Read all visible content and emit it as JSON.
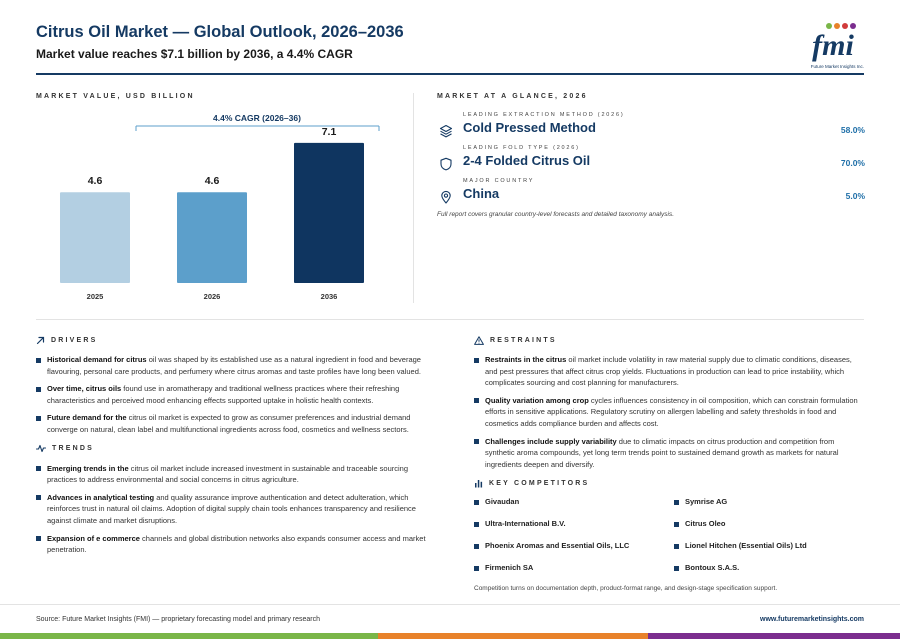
{
  "header": {
    "title": "Citrus Oil Market — Global Outlook, 2026–2036",
    "subtitle": "Market value reaches $7.1 billion by 2036, a 4.4% CAGR",
    "logo_text": "fmi",
    "logo_tagline": "Future Market Insights Inc."
  },
  "chart_section": {
    "label": "MARKET VALUE, USD BILLION"
  },
  "chart_data": {
    "type": "bar",
    "categories": [
      "2025",
      "2026",
      "2036"
    ],
    "values": [
      4.6,
      4.6,
      7.1
    ],
    "value_labels": [
      "4.6",
      "4.6",
      "7.1"
    ],
    "annotation": "4.4% CAGR (2026–36)",
    "ylim": [
      0,
      7.6
    ],
    "colors": [
      "#b3cfe2",
      "#5c9fcb",
      "#0f3560"
    ],
    "grid": false
  },
  "glance": {
    "label": "MARKET AT A GLANCE, 2026",
    "items": [
      {
        "sub": "LEADING EXTRACTION METHOD (2026)",
        "name": "Cold Pressed Method",
        "value": "58.0%",
        "icon": "layers-icon"
      },
      {
        "sub": "LEADING FOLD TYPE (2026)",
        "name": "2-4 Folded Citrus Oil",
        "value": "70.0%",
        "icon": "shield-icon"
      },
      {
        "sub": "MAJOR COUNTRY",
        "name": "China",
        "value": "5.0%",
        "icon": "location-pin-icon"
      }
    ],
    "note": "Full report covers granular country-level forecasts and detailed taxonomy analysis."
  },
  "drivers": {
    "label": "DRIVERS",
    "items": [
      {
        "lead": "Historical demand for citrus",
        "text": " oil was shaped by its established use as a natural ingredient in food and beverage flavouring, personal care products, and perfumery where citrus aromas and taste profiles have long been valued."
      },
      {
        "lead": "Over time, citrus oils",
        "text": " found use in aromatherapy and traditional wellness practices where their refreshing characteristics and perceived mood enhancing effects supported uptake in holistic health contexts."
      },
      {
        "lead": "Future demand for the",
        "text": " citrus oil market is expected to grow as consumer preferences and industrial demand converge on natural, clean label and multifunctional ingredients across food, cosmetics and wellness sectors."
      }
    ]
  },
  "trends": {
    "label": "TRENDS",
    "items": [
      {
        "lead": "Emerging trends in the",
        "text": " citrus oil market include increased investment in sustainable and traceable sourcing practices to address environmental and social concerns in citrus agriculture."
      },
      {
        "lead": "Advances in analytical testing",
        "text": " and quality assurance improve authentication and detect adulteration, which reinforces trust in natural oil claims. Adoption of digital supply chain tools enhances transparency and resilience against climate and market disruptions."
      },
      {
        "lead": "Expansion of e commerce",
        "text": " channels and global distribution networks also expands consumer access and market penetration."
      }
    ]
  },
  "restraints": {
    "label": "RESTRAINTS",
    "items": [
      {
        "lead": "Restraints in the citrus",
        "text": " oil market include volatility in raw material supply due to climatic conditions, diseases, and pest pressures that affect citrus crop yields. Fluctuations in production can lead to price instability, which complicates sourcing and cost planning for manufacturers."
      },
      {
        "lead": "Quality variation among crop",
        "text": " cycles influences consistency in oil composition, which can constrain formulation efforts in sensitive applications. Regulatory scrutiny on allergen labelling and safety thresholds in food and cosmetics adds compliance burden and affects cost."
      },
      {
        "lead": "Challenges include supply variability",
        "text": " due to climatic impacts on citrus production and competition from synthetic aroma compounds, yet long term trends point to sustained demand growth as markets for natural ingredients deepen and diversify."
      }
    ]
  },
  "competitors": {
    "label": "KEY COMPETITORS",
    "items": [
      "Givaudan",
      "Symrise AG",
      "Ultra-International B.V.",
      "Citrus Oleo",
      "Phoenix Aromas and Essential Oils, LLC",
      "Lionel Hitchen (Essential Oils) Ltd",
      "Firmenich SA",
      "Bontoux S.A.S."
    ],
    "note": "Competition turns on documentation depth, product-format range, and design-stage specification support."
  },
  "footer": {
    "source": "Source: Future Market Insights (FMI) — proprietary forecasting model and primary research",
    "url": "www.futuremarketinsights.com"
  },
  "colors": {
    "brand_navy": "#153a63",
    "accent_blue": "#1f6fa8",
    "footer_green": "#7ab648",
    "footer_orange": "#e8822a",
    "footer_purple": "#7b2d8e"
  }
}
